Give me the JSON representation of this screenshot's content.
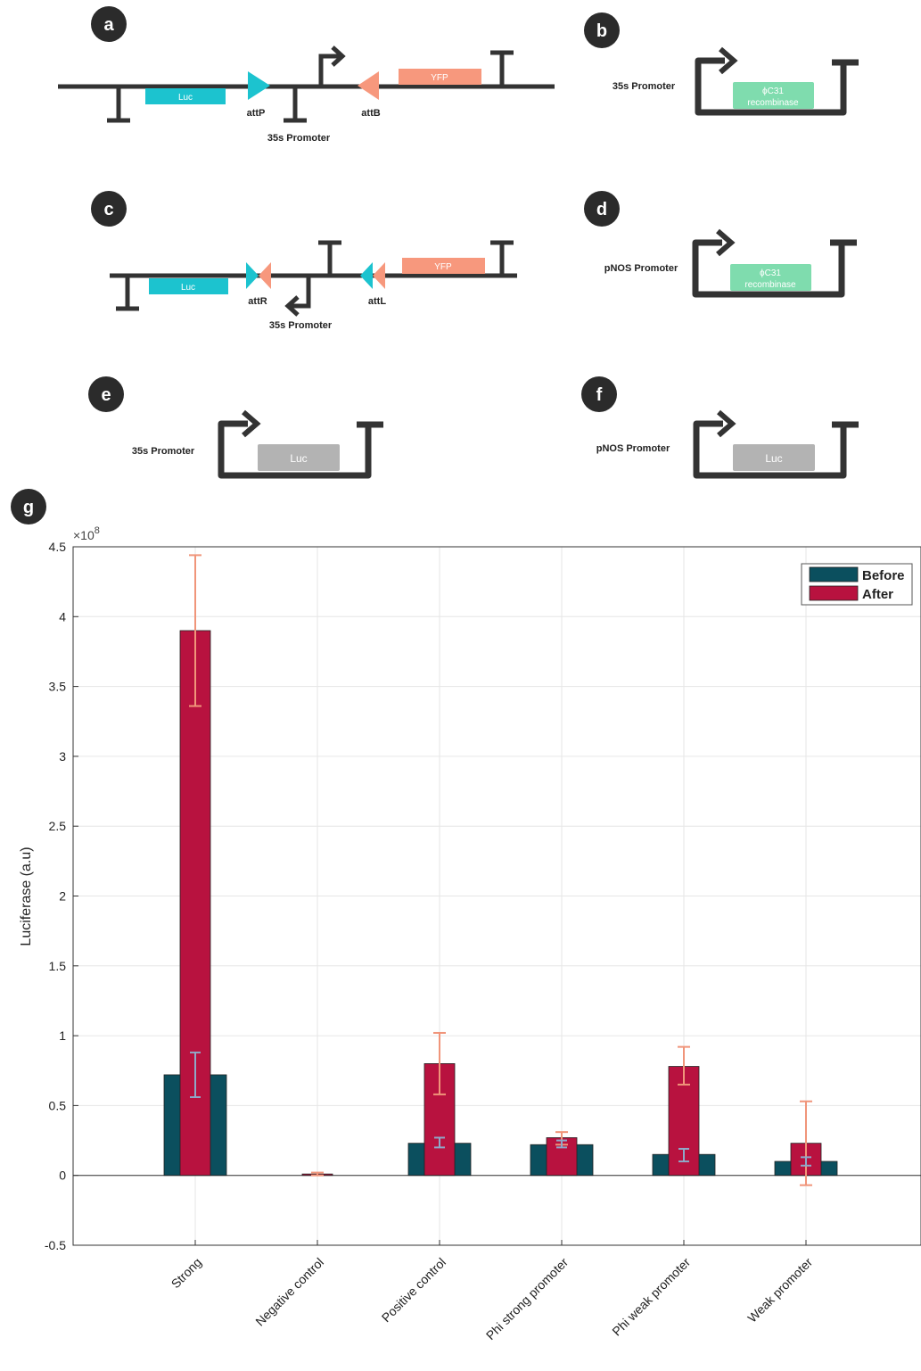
{
  "colors": {
    "line": "#333333",
    "before": "#0b4f5e",
    "after": "#b8123f",
    "luc_cyan": "#1cc3cf",
    "yfp_salmon": "#f7987d",
    "recombinase_green": "#7fdcae",
    "luc_gray": "#b3b3b3",
    "err_before": "#8fa8c8",
    "err_after": "#f0957a"
  },
  "panels": {
    "a": {
      "letter": "a",
      "luc": "Luc",
      "yfp": "YFP",
      "attP": "attP",
      "attB": "attB",
      "promoter": "35s Promoter"
    },
    "b": {
      "letter": "b",
      "promoter": "35s Promoter",
      "gene_line1": "ϕC31",
      "gene_line2": "recombinase"
    },
    "c": {
      "letter": "c",
      "luc": "Luc",
      "yfp": "YFP",
      "attR": "attR",
      "attL": "attL",
      "promoter": "35s Promoter"
    },
    "d": {
      "letter": "d",
      "promoter": "pNOS Promoter",
      "gene_line1": "ϕC31",
      "gene_line2": "recombinase"
    },
    "e": {
      "letter": "e",
      "promoter": "35s Promoter",
      "gene": "Luc"
    },
    "f": {
      "letter": "f",
      "promoter": "pNOS Promoter",
      "gene": "Luc"
    },
    "g": {
      "letter": "g"
    }
  },
  "chart_data": {
    "type": "bar",
    "ylabel": "Luciferase (a.u)",
    "exponent_label": "×10",
    "exponent": "8",
    "ylim": [
      -0.5,
      4.5
    ],
    "yticks": [
      -0.5,
      0,
      0.5,
      1,
      1.5,
      2,
      2.5,
      3,
      3.5,
      4,
      4.5
    ],
    "ytick_labels": [
      "-0.5",
      "0",
      "0.5",
      "1",
      "1.5",
      "2",
      "2.5",
      "3",
      "3.5",
      "4",
      "4.5"
    ],
    "grid": true,
    "legend_position": "top-right",
    "categories": [
      "Strong",
      "Negative control",
      "Positive control",
      "Phi strong promoter",
      "Phi weak promoter",
      "Weak promoter"
    ],
    "series": [
      {
        "name": "Before",
        "values": [
          0.72,
          0.0,
          0.23,
          0.22,
          0.15,
          0.1
        ],
        "err_low": [
          0.56,
          0.0,
          0.2,
          0.2,
          0.1,
          0.07
        ],
        "err_high": [
          0.88,
          0.0,
          0.27,
          0.25,
          0.19,
          0.13
        ]
      },
      {
        "name": "After",
        "values": [
          3.9,
          0.01,
          0.8,
          0.27,
          0.78,
          0.23
        ],
        "err_low": [
          3.36,
          0.0,
          0.58,
          0.22,
          0.65,
          -0.07
        ],
        "err_high": [
          4.44,
          0.02,
          1.02,
          0.31,
          0.92,
          0.53
        ]
      }
    ]
  }
}
